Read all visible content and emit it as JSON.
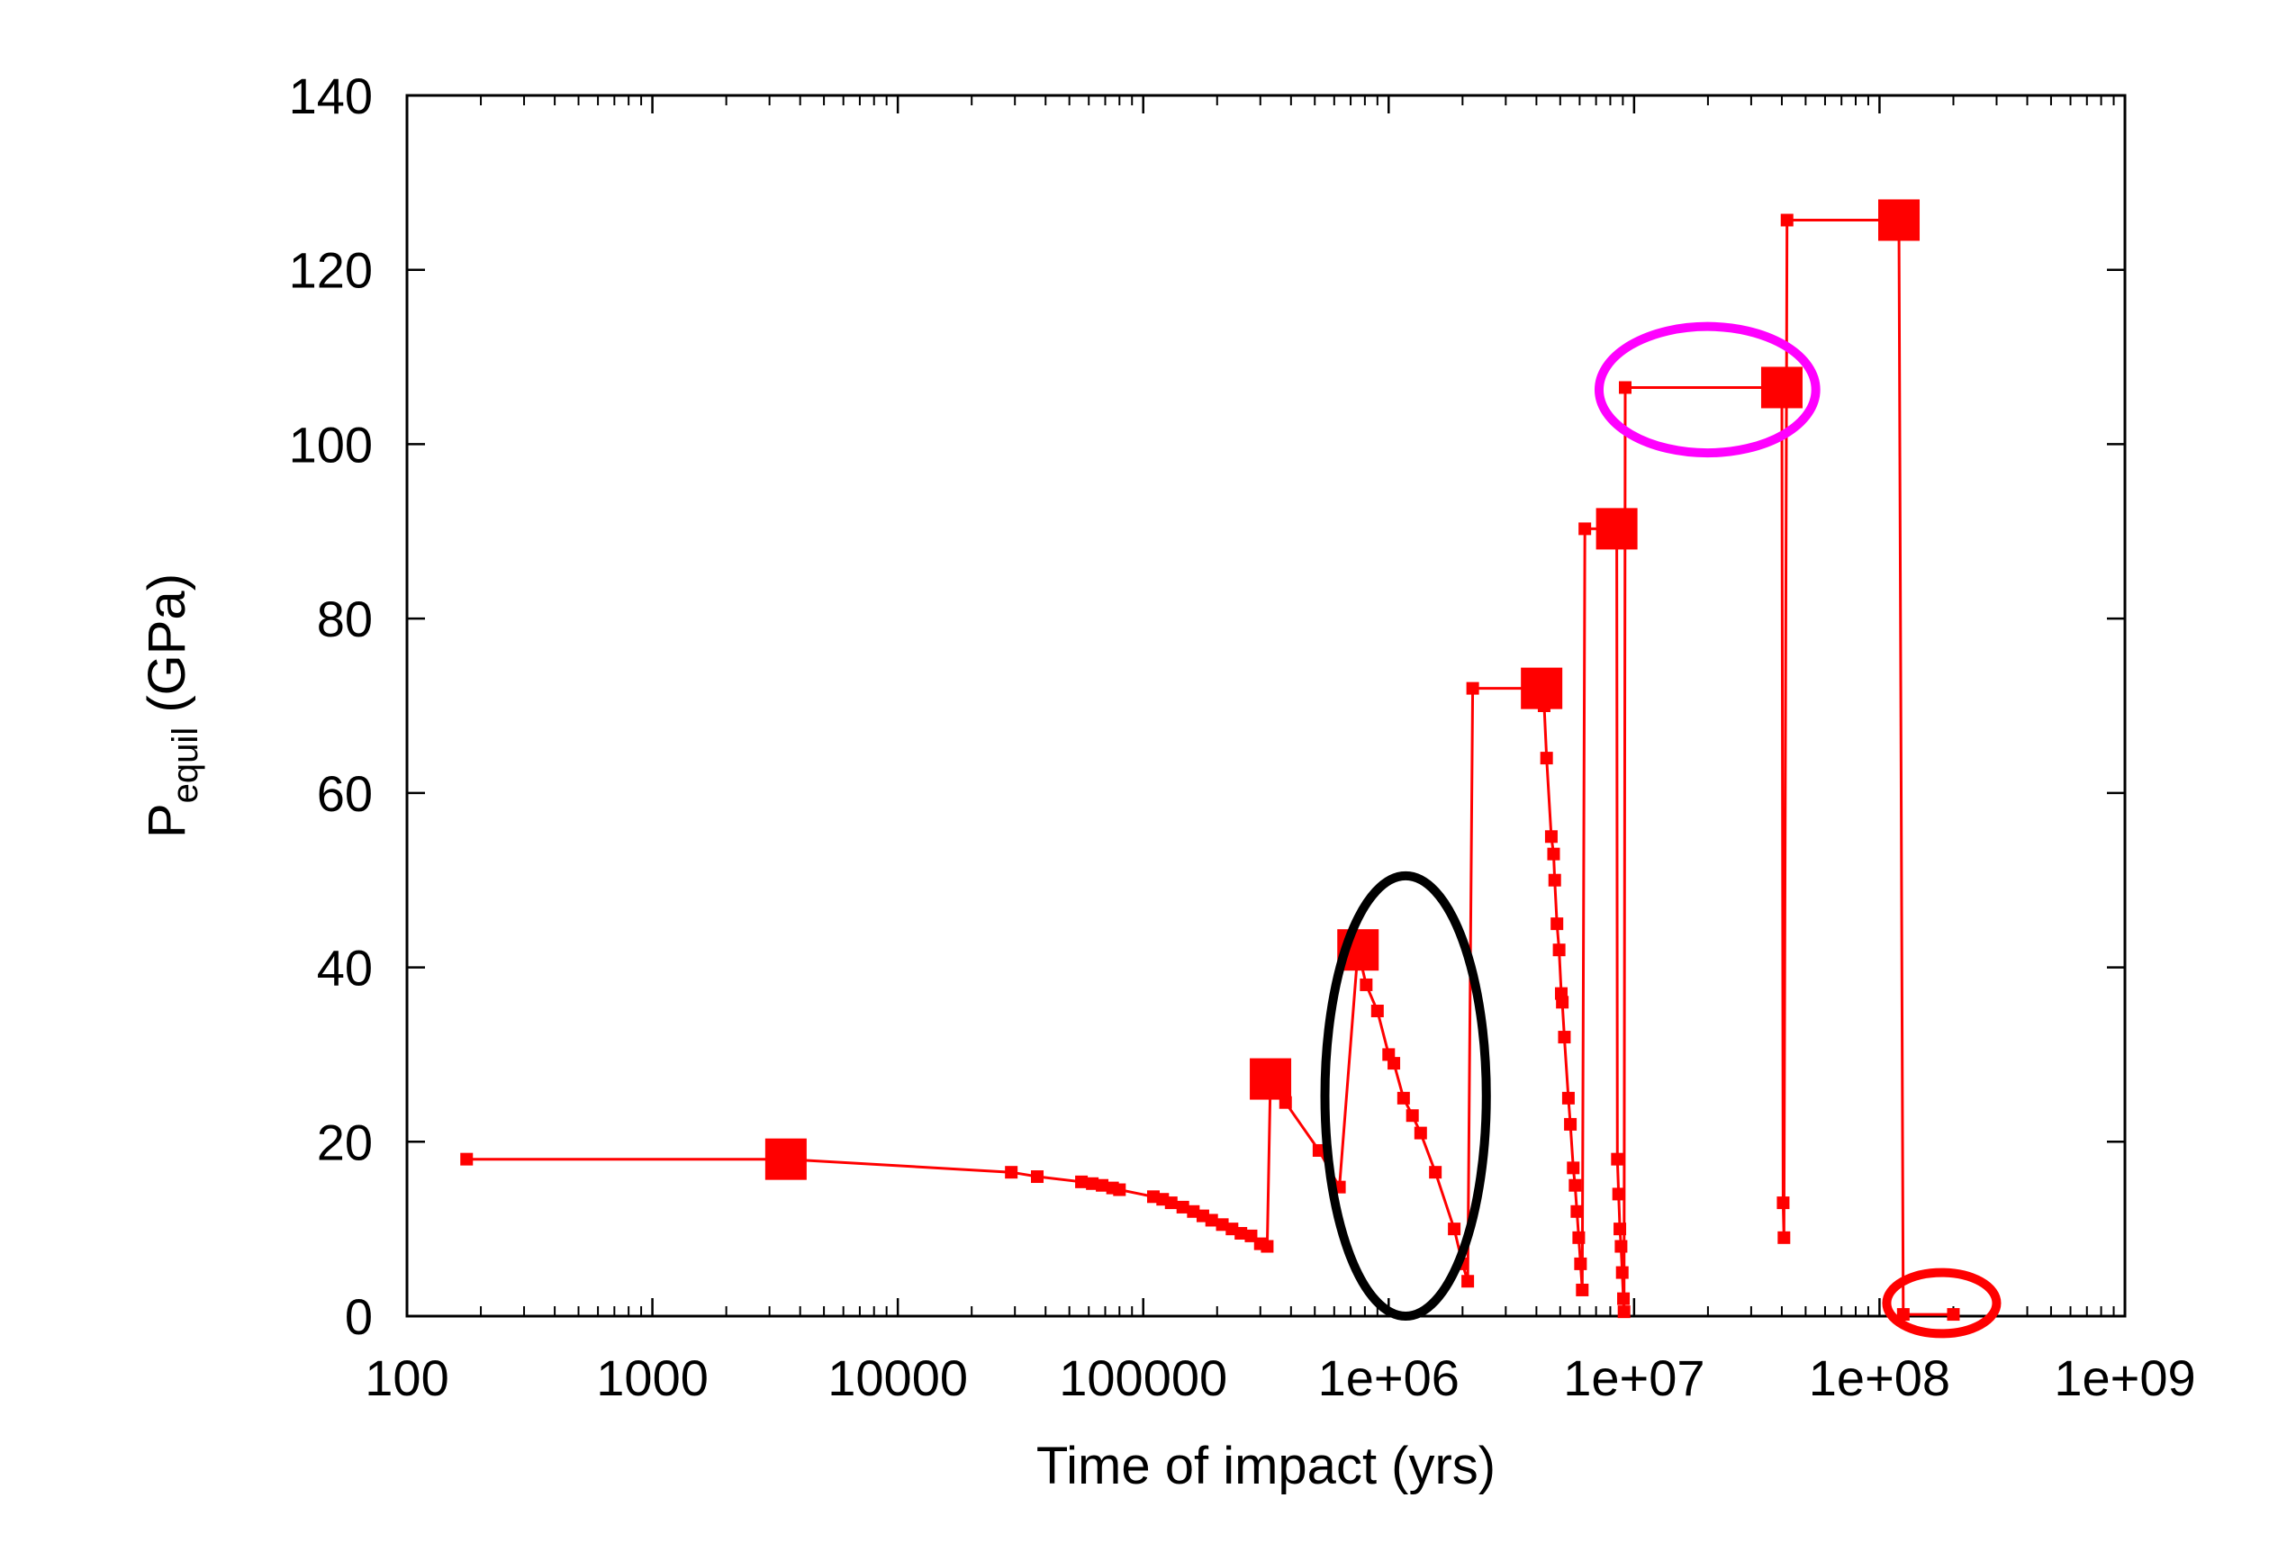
{
  "chart_data": {
    "type": "scatter",
    "xlabel": "Time of impact (yrs)",
    "ylabel_main": "P",
    "ylabel_sub": "equil",
    "ylabel_unit": " (GPa)",
    "x_scale": "log",
    "xlim": [
      100,
      1000000000
    ],
    "ylim": [
      0,
      140
    ],
    "x_ticks": [
      100,
      1000,
      10000,
      100000,
      1000000,
      10000000,
      100000000,
      1000000000
    ],
    "x_tick_labels": [
      "100",
      "1000",
      "10000",
      "100000",
      "1e+06",
      "1e+07",
      "1e+08",
      "1e+09"
    ],
    "y_ticks": [
      0,
      20,
      40,
      60,
      80,
      100,
      120,
      140
    ],
    "y_tick_labels": [
      "0",
      "20",
      "40",
      "60",
      "80",
      "100",
      "120",
      "140"
    ],
    "grid": false,
    "series_color": "#ff0000",
    "points": [
      [
        175,
        18
      ],
      [
        3500,
        18
      ],
      [
        29000,
        16.5
      ],
      [
        37000,
        16
      ],
      [
        56000,
        15.4
      ],
      [
        62000,
        15.2
      ],
      [
        68000,
        15
      ],
      [
        75000,
        14.7
      ],
      [
        80000,
        14.5
      ],
      [
        110000,
        13.7
      ],
      [
        120000,
        13.4
      ],
      [
        130000,
        13
      ],
      [
        145000,
        12.5
      ],
      [
        160000,
        12
      ],
      [
        175000,
        11.5
      ],
      [
        190000,
        11
      ],
      [
        210000,
        10.5
      ],
      [
        230000,
        10
      ],
      [
        250000,
        9.5
      ],
      [
        275000,
        9.2
      ],
      [
        300000,
        8.3
      ],
      [
        320000,
        8
      ],
      [
        330000,
        27.2
      ],
      [
        380000,
        24.5
      ],
      [
        520000,
        19
      ],
      [
        630000,
        14.8
      ],
      [
        750000,
        42
      ],
      [
        810000,
        38
      ],
      [
        900000,
        35
      ],
      [
        1000000,
        30
      ],
      [
        1050000,
        29
      ],
      [
        1150000,
        25
      ],
      [
        1250000,
        23
      ],
      [
        1350000,
        21
      ],
      [
        1550000,
        16.5
      ],
      [
        1850000,
        10
      ],
      [
        2000000,
        6
      ],
      [
        2100000,
        4
      ],
      [
        2200000,
        72
      ],
      [
        4200000,
        72
      ],
      [
        4300000,
        70
      ],
      [
        4400000,
        64
      ],
      [
        4600000,
        55
      ],
      [
        4700000,
        53
      ],
      [
        4750000,
        50
      ],
      [
        4850000,
        45
      ],
      [
        4950000,
        42
      ],
      [
        5050000,
        37
      ],
      [
        5100000,
        36
      ],
      [
        5200000,
        32
      ],
      [
        5400000,
        25
      ],
      [
        5500000,
        22
      ],
      [
        5650000,
        17
      ],
      [
        5750000,
        15
      ],
      [
        5850000,
        12
      ],
      [
        5950000,
        9
      ],
      [
        6050000,
        6
      ],
      [
        6150000,
        3
      ],
      [
        6300000,
        90.3
      ],
      [
        8500000,
        90.3
      ],
      [
        8550000,
        18
      ],
      [
        8650000,
        14
      ],
      [
        8750000,
        10
      ],
      [
        8850000,
        8
      ],
      [
        8950000,
        5
      ],
      [
        9050000,
        2
      ],
      [
        9100000,
        0.5
      ],
      [
        9200000,
        106.5
      ],
      [
        40000000,
        106.5
      ],
      [
        40500000,
        13
      ],
      [
        40800000,
        9
      ],
      [
        42000000,
        125.7
      ],
      [
        120000000,
        125.7
      ],
      [
        125000000,
        0.2
      ],
      [
        200000000,
        0.2
      ]
    ],
    "key_markers": [
      [
        3500,
        18
      ],
      [
        330000,
        27.2
      ],
      [
        750000,
        42
      ],
      [
        4200000,
        72
      ],
      [
        8500000,
        90.3
      ],
      [
        40000000,
        106.5
      ],
      [
        120000000,
        125.7
      ]
    ],
    "annotations": [
      {
        "shape": "ellipse",
        "color": "#000000",
        "x_range": [
          550000,
          2500000
        ],
        "y_range": [
          0,
          50.5
        ]
      },
      {
        "shape": "ellipse",
        "color": "#ff00ff",
        "x_range": [
          7200000,
          55000000
        ],
        "y_range": [
          99,
          113.5
        ]
      },
      {
        "shape": "ellipse",
        "color": "#ff0000",
        "x_range": [
          107000000,
          300000000
        ],
        "y_range": [
          -2,
          5
        ]
      }
    ]
  }
}
